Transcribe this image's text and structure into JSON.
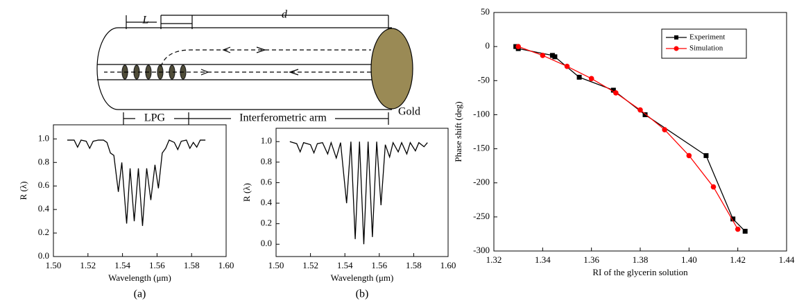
{
  "diagram": {
    "labels": {
      "L": "L",
      "d": "d",
      "lpg": "LPG",
      "arm": "Interferometric arm",
      "gold": "Gold"
    }
  },
  "chart_data": [
    {
      "type": "line",
      "caption": "(a)",
      "x_label": "Wavelength (μm)",
      "y_label": "R (λ)",
      "color": "#000000",
      "x": [
        1.508,
        1.512,
        1.514,
        1.516,
        1.519,
        1.521,
        1.523,
        1.526,
        1.529,
        1.531,
        1.533,
        1.535,
        1.5376,
        1.5396,
        1.5424,
        1.5444,
        1.5468,
        1.5492,
        1.5516,
        1.554,
        1.5564,
        1.5588,
        1.5608,
        1.563,
        1.565,
        1.567,
        1.57,
        1.572,
        1.574,
        1.577,
        1.579,
        1.581,
        1.583,
        1.585,
        1.588
      ],
      "values": [
        0.99,
        0.99,
        0.93,
        0.99,
        0.98,
        0.92,
        0.98,
        0.99,
        0.99,
        0.97,
        0.88,
        0.86,
        0.55,
        0.8,
        0.28,
        0.75,
        0.3,
        0.75,
        0.26,
        0.75,
        0.48,
        0.78,
        0.58,
        0.88,
        0.92,
        0.99,
        0.97,
        0.91,
        0.98,
        0.99,
        0.92,
        0.97,
        0.93,
        0.99,
        0.99
      ],
      "xlim": [
        1.5,
        1.6
      ],
      "xticks": [
        {
          "value": 1.5,
          "label": "1.50"
        },
        1.52,
        1.54,
        1.56,
        1.58,
        {
          "value": 1.6,
          "label": "1.60"
        }
      ],
      "ylim": [
        0,
        1.12
      ],
      "yticks": [
        {
          "value": 0,
          "label": "0.0"
        },
        0.2,
        0.4,
        0.6,
        0.8,
        {
          "value": 1,
          "label": "1.0"
        }
      ]
    },
    {
      "type": "line",
      "caption": "(b)",
      "x_label": "Wavelength (μm)",
      "y_label": "R (λ)",
      "color": "#000000",
      "x": [
        1.508,
        1.512,
        1.514,
        1.516,
        1.52,
        1.522,
        1.524,
        1.527,
        1.53,
        1.532,
        1.535,
        1.5375,
        1.541,
        1.5435,
        1.546,
        1.5485,
        1.551,
        1.5535,
        1.556,
        1.5585,
        1.561,
        1.5635,
        1.566,
        1.568,
        1.571,
        1.573,
        1.576,
        1.578,
        1.581,
        1.583,
        1.586,
        1.588
      ],
      "values": [
        1.0,
        0.98,
        0.9,
        0.99,
        0.97,
        0.89,
        0.98,
        0.99,
        0.88,
        0.99,
        0.84,
        0.99,
        0.4,
        1.0,
        0.05,
        1.0,
        0.0,
        1.0,
        0.07,
        1.0,
        0.38,
        0.97,
        0.85,
        0.99,
        0.9,
        0.99,
        0.88,
        0.99,
        0.91,
        0.99,
        0.95,
        0.99
      ],
      "xlim": [
        1.5,
        1.6
      ],
      "xticks": [
        {
          "value": 1.5,
          "label": "1.50"
        },
        1.52,
        1.54,
        1.56,
        1.58,
        {
          "value": 1.6,
          "label": "1.60"
        }
      ],
      "ylim": [
        -0.12,
        1.13
      ],
      "yticks": [
        {
          "value": 0,
          "label": "0.0"
        },
        0.2,
        0.4,
        0.6,
        0.8,
        {
          "value": 1,
          "label": "1.0"
        }
      ]
    },
    {
      "type": "line",
      "x_label": "RI of the glycerin solution",
      "y_label": "Phase shift (deg)",
      "legend": "upper right",
      "series": [
        {
          "name": "Experiment",
          "color": "#000000",
          "marker": "square",
          "x": [
            1.329,
            1.33,
            1.344,
            1.345,
            1.355,
            1.369,
            1.382,
            1.407,
            1.418,
            1.423
          ],
          "values": [
            0,
            -3,
            -13,
            -15,
            -45,
            -64,
            -100,
            -160,
            -253,
            -271
          ]
        },
        {
          "name": "Simulation",
          "color": "#ff0000",
          "marker": "circle",
          "x": [
            1.33,
            1.34,
            1.35,
            1.36,
            1.37,
            1.38,
            1.39,
            1.4,
            1.41,
            1.42
          ],
          "values": [
            0,
            -13,
            -29,
            -47,
            -68,
            -93,
            -122,
            -160,
            -206,
            -268
          ]
        }
      ],
      "xlim": [
        1.32,
        1.44
      ],
      "xticks": [
        1.32,
        1.34,
        1.36,
        1.38,
        {
          "value": 1.4,
          "label": "1.40"
        },
        1.42,
        1.44
      ],
      "ylim": [
        -300,
        50
      ],
      "yticks": [
        -300,
        -250,
        -200,
        -150,
        -100,
        -50,
        0,
        50
      ]
    }
  ]
}
